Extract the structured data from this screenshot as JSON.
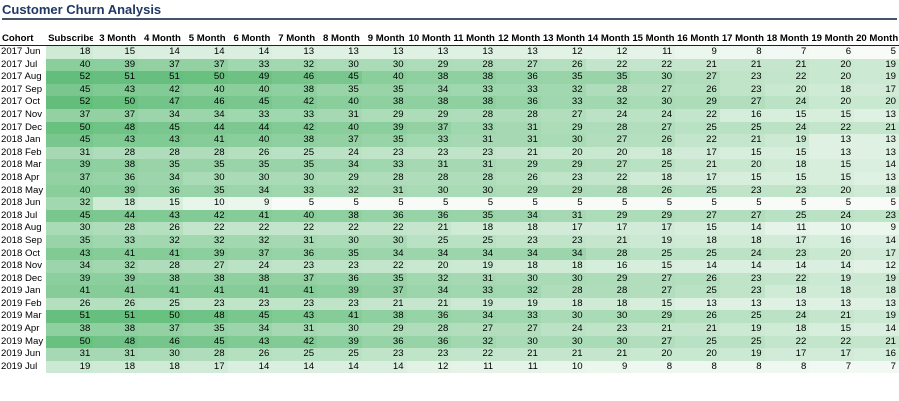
{
  "title": "Customer Churn Analysis",
  "colors": {
    "low": "#f8fbf8",
    "high": "#63be7b",
    "title": "#1f3864"
  },
  "chart_data": {
    "type": "heatmap",
    "title": "Customer Churn Analysis",
    "row_header": "Cohort",
    "columns": [
      "Subscribe",
      "3 Month",
      "4 Month",
      "5 Month",
      "6 Month",
      "7 Month",
      "8 Month",
      "9 Month",
      "10 Month",
      "11 Month",
      "12 Month",
      "13 Month",
      "14 Month",
      "15 Month",
      "16 Month",
      "17 Month",
      "18 Month",
      "19 Month",
      "20 Month"
    ],
    "rows": [
      "2017 Jun",
      "2017 Jul",
      "2017 Aug",
      "2017 Sep",
      "2017 Oct",
      "2017 Nov",
      "2017 Dec",
      "2018 Jan",
      "2018 Feb",
      "2018 Mar",
      "2018 Apr",
      "2018 May",
      "2018 Jun",
      "2018 Jul",
      "2018 Aug",
      "2018 Sep",
      "2018 Oct",
      "2018 Nov",
      "2018 Dec",
      "2019 Jan",
      "2019 Feb",
      "2019 Mar",
      "2019 Apr",
      "2019 May",
      "2019 Jun",
      "2019 Jul"
    ],
    "values": [
      [
        18,
        15,
        14,
        14,
        14,
        13,
        13,
        13,
        13,
        13,
        13,
        12,
        12,
        11,
        9,
        8,
        7,
        6,
        5
      ],
      [
        40,
        39,
        37,
        37,
        33,
        32,
        30,
        30,
        29,
        28,
        27,
        26,
        22,
        22,
        21,
        21,
        21,
        20,
        19
      ],
      [
        52,
        51,
        51,
        50,
        49,
        46,
        45,
        40,
        38,
        38,
        36,
        35,
        35,
        30,
        27,
        23,
        22,
        20,
        19
      ],
      [
        45,
        43,
        42,
        40,
        40,
        38,
        35,
        35,
        34,
        33,
        33,
        32,
        28,
        27,
        26,
        23,
        20,
        18,
        17
      ],
      [
        52,
        50,
        47,
        46,
        45,
        42,
        40,
        38,
        38,
        38,
        36,
        33,
        32,
        30,
        29,
        27,
        24,
        20,
        20
      ],
      [
        37,
        37,
        34,
        34,
        33,
        33,
        31,
        29,
        29,
        28,
        28,
        27,
        24,
        24,
        22,
        16,
        15,
        15,
        13
      ],
      [
        50,
        48,
        45,
        44,
        44,
        42,
        40,
        39,
        37,
        33,
        31,
        29,
        28,
        27,
        25,
        25,
        24,
        22,
        21
      ],
      [
        45,
        43,
        43,
        41,
        40,
        38,
        37,
        35,
        33,
        31,
        31,
        30,
        27,
        26,
        22,
        21,
        19,
        13,
        13
      ],
      [
        31,
        28,
        28,
        28,
        26,
        25,
        24,
        23,
        23,
        23,
        21,
        20,
        20,
        18,
        17,
        15,
        15,
        13,
        13
      ],
      [
        39,
        38,
        35,
        35,
        35,
        35,
        34,
        33,
        31,
        31,
        29,
        29,
        27,
        25,
        21,
        20,
        18,
        15,
        14
      ],
      [
        37,
        36,
        34,
        30,
        30,
        30,
        29,
        28,
        28,
        28,
        26,
        23,
        22,
        18,
        17,
        15,
        15,
        15,
        13
      ],
      [
        40,
        39,
        36,
        35,
        34,
        33,
        32,
        31,
        30,
        30,
        29,
        29,
        28,
        26,
        25,
        23,
        23,
        20,
        18
      ],
      [
        32,
        18,
        15,
        10,
        9,
        5,
        5,
        5,
        5,
        5,
        5,
        5,
        5,
        5,
        5,
        5,
        5,
        5,
        5
      ],
      [
        45,
        44,
        43,
        42,
        41,
        40,
        38,
        36,
        36,
        35,
        34,
        31,
        29,
        29,
        27,
        27,
        25,
        24,
        23
      ],
      [
        30,
        28,
        26,
        22,
        22,
        22,
        22,
        22,
        21,
        18,
        18,
        17,
        17,
        17,
        15,
        14,
        11,
        10,
        9
      ],
      [
        35,
        33,
        32,
        32,
        32,
        31,
        30,
        30,
        25,
        25,
        23,
        23,
        21,
        19,
        18,
        18,
        17,
        16,
        14
      ],
      [
        43,
        41,
        41,
        39,
        37,
        36,
        35,
        34,
        34,
        34,
        34,
        34,
        28,
        25,
        25,
        24,
        23,
        20,
        17
      ],
      [
        34,
        32,
        28,
        27,
        24,
        23,
        23,
        22,
        20,
        19,
        18,
        18,
        16,
        15,
        14,
        14,
        14,
        14,
        12
      ],
      [
        39,
        39,
        38,
        38,
        38,
        37,
        36,
        35,
        32,
        31,
        30,
        30,
        29,
        27,
        26,
        23,
        22,
        19,
        19
      ],
      [
        41,
        41,
        41,
        41,
        41,
        41,
        39,
        37,
        34,
        33,
        32,
        28,
        28,
        27,
        25,
        23,
        18,
        18,
        18
      ],
      [
        26,
        26,
        25,
        23,
        23,
        23,
        23,
        21,
        21,
        19,
        19,
        18,
        18,
        15,
        13,
        13,
        13,
        13,
        13
      ],
      [
        51,
        51,
        50,
        48,
        45,
        43,
        41,
        38,
        36,
        34,
        33,
        30,
        30,
        29,
        26,
        25,
        24,
        21,
        19
      ],
      [
        38,
        38,
        37,
        35,
        34,
        31,
        30,
        29,
        28,
        27,
        27,
        24,
        23,
        21,
        21,
        19,
        18,
        15,
        14
      ],
      [
        50,
        48,
        46,
        45,
        43,
        42,
        39,
        36,
        36,
        32,
        30,
        30,
        30,
        27,
        25,
        25,
        22,
        22,
        21
      ],
      [
        31,
        31,
        30,
        28,
        26,
        25,
        25,
        23,
        23,
        22,
        21,
        21,
        21,
        20,
        20,
        19,
        17,
        17,
        16
      ],
      [
        19,
        18,
        18,
        17,
        14,
        14,
        14,
        14,
        12,
        11,
        11,
        10,
        9,
        8,
        8,
        8,
        8,
        7,
        7
      ]
    ],
    "scale": {
      "min": 5,
      "max": 52,
      "min_color": "#f8fbf8",
      "max_color": "#63be7b"
    }
  }
}
